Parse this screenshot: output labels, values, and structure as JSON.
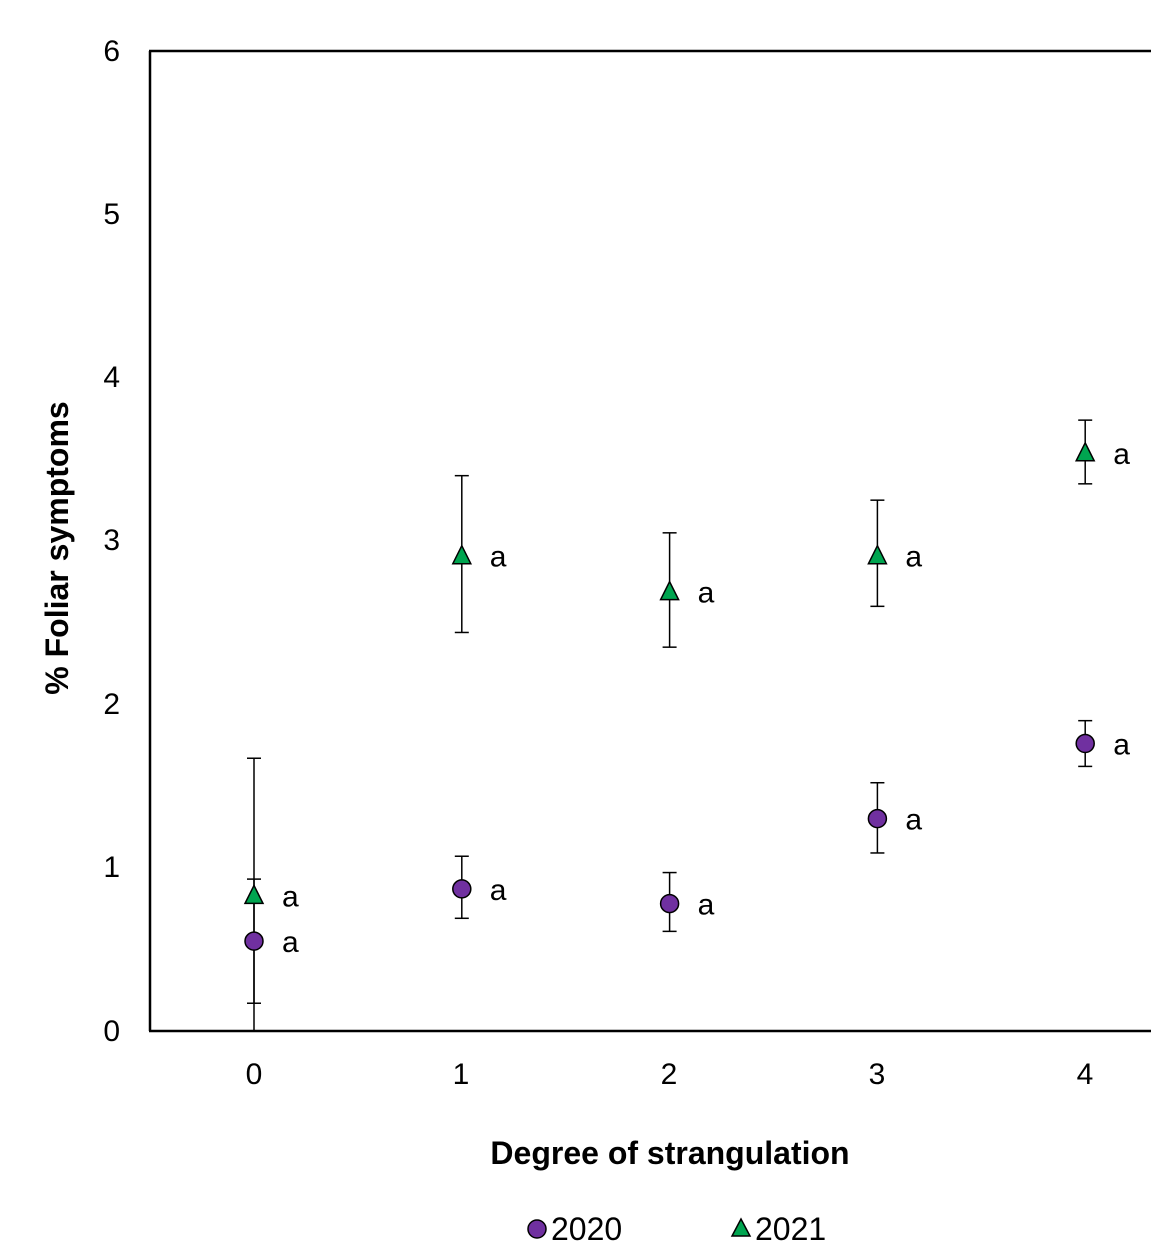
{
  "chart_data": {
    "type": "scatter",
    "title": "",
    "xlabel": "Degree of strangulation",
    "ylabel": "% Foliar symptoms",
    "categories": [
      "0",
      "1",
      "2",
      "3",
      "4"
    ],
    "ylim": [
      0,
      6
    ],
    "yticks": [
      "0",
      "1",
      "2",
      "3",
      "4",
      "5",
      "6"
    ],
    "grid": false,
    "legend_position": "bottom",
    "series": [
      {
        "name": "2020",
        "marker": "circle",
        "color": "#7030a0",
        "values": [
          0.55,
          0.87,
          0.78,
          1.3,
          1.76
        ],
        "error_low": [
          0.17,
          0.69,
          0.61,
          1.09,
          1.62
        ],
        "error_high": [
          1.67,
          1.07,
          0.97,
          1.52,
          1.9
        ],
        "labels": [
          "a",
          "a",
          "a",
          "a",
          "a"
        ]
      },
      {
        "name": "2021",
        "marker": "triangle",
        "color": "#00a550",
        "values": [
          0.83,
          2.91,
          2.69,
          2.91,
          3.54
        ],
        "error_low": [
          0.0,
          2.44,
          2.35,
          2.6,
          3.35
        ],
        "error_high": [
          0.93,
          3.4,
          3.05,
          3.25,
          3.74
        ],
        "labels": [
          "a",
          "a",
          "a",
          "a",
          "a"
        ]
      }
    ]
  }
}
